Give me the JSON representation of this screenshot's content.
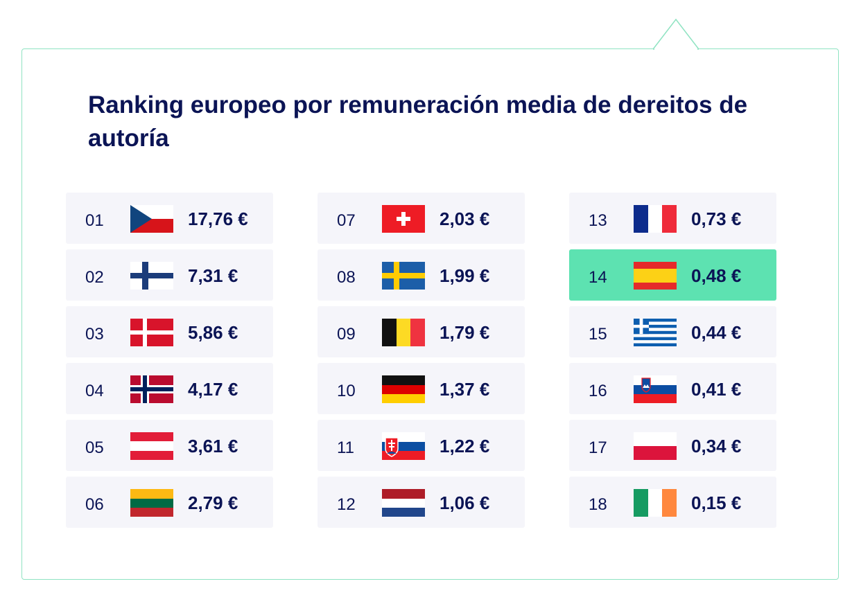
{
  "title": "Ranking europeo por remuneración media de dereitos de autoría",
  "colors": {
    "accent": "#5de2b1",
    "text": "#0b1455",
    "cell_bg": "#f5f5fa",
    "border": "#8fe3c2"
  },
  "ranking": [
    {
      "rank": "01",
      "value": "17,76 €",
      "flag": "flag-czech-republic-icon"
    },
    {
      "rank": "02",
      "value": "7,31 €",
      "flag": "flag-finland-icon"
    },
    {
      "rank": "03",
      "value": "5,86 €",
      "flag": "flag-denmark-icon"
    },
    {
      "rank": "04",
      "value": "4,17 €",
      "flag": "flag-norway-icon"
    },
    {
      "rank": "05",
      "value": "3,61 €",
      "flag": "flag-austria-icon"
    },
    {
      "rank": "06",
      "value": "2,79 €",
      "flag": "flag-lithuania-icon"
    },
    {
      "rank": "07",
      "value": "2,03 €",
      "flag": "flag-switzerland-icon"
    },
    {
      "rank": "08",
      "value": "1,99 €",
      "flag": "flag-sweden-icon"
    },
    {
      "rank": "09",
      "value": "1,79 €",
      "flag": "flag-belgium-icon"
    },
    {
      "rank": "10",
      "value": "1,37 €",
      "flag": "flag-germany-icon"
    },
    {
      "rank": "11",
      "value": "1,22 €",
      "flag": "flag-slovakia-icon"
    },
    {
      "rank": "12",
      "value": "1,06 €",
      "flag": "flag-netherlands-icon"
    },
    {
      "rank": "13",
      "value": "0,73 €",
      "flag": "flag-france-icon"
    },
    {
      "rank": "14",
      "value": "0,48 €",
      "flag": "flag-spain-icon",
      "highlighted": true
    },
    {
      "rank": "15",
      "value": "0,44 €",
      "flag": "flag-greece-icon"
    },
    {
      "rank": "16",
      "value": "0,41 €",
      "flag": "flag-slovenia-icon"
    },
    {
      "rank": "17",
      "value": "0,34 €",
      "flag": "flag-poland-icon"
    },
    {
      "rank": "18",
      "value": "0,15 €",
      "flag": "flag-ireland-icon"
    }
  ]
}
